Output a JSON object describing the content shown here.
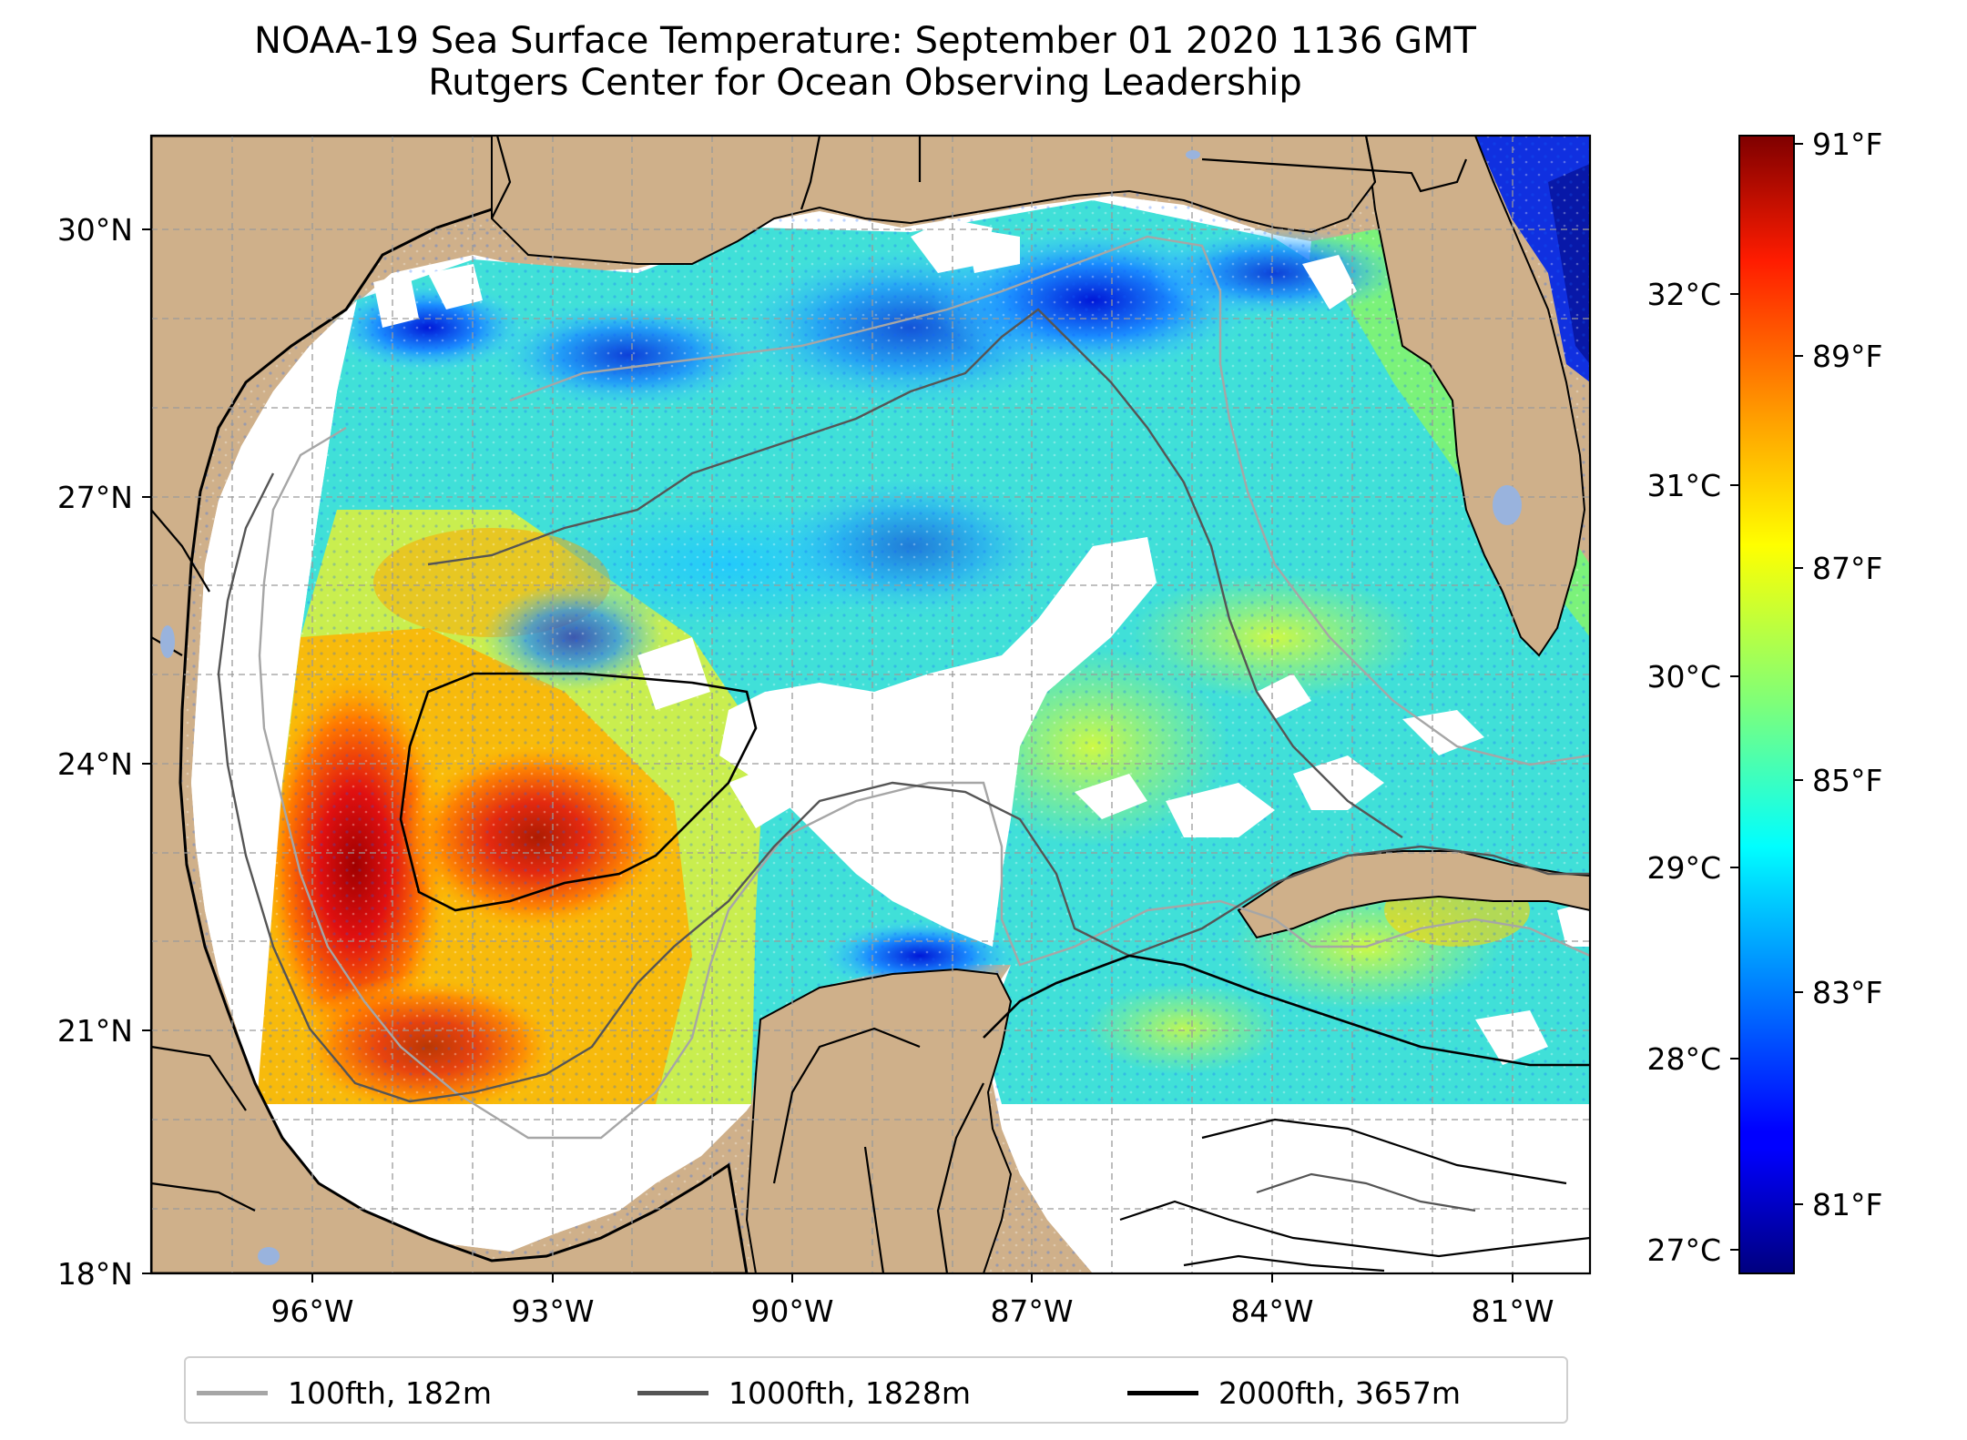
{
  "title": {
    "line1": "NOAA-19 Sea Surface Temperature: September 01 2020 1136 GMT",
    "line2": "Rutgers Center for Ocean Observing Leadership"
  },
  "map": {
    "lat_labels": [
      "30°N",
      "27°N",
      "24°N",
      "21°N",
      "18°N"
    ],
    "lon_labels": [
      "96°W",
      "93°W",
      "90°W",
      "87°W",
      "84°W",
      "81°W"
    ],
    "land_color": "#cfb08a",
    "no_data_color": "#ffffff",
    "grid": true
  },
  "colorbar": {
    "celsius_labels": [
      "32°C",
      "31°C",
      "30°C",
      "29°C",
      "28°C",
      "27°C"
    ],
    "fahrenheit_labels": [
      "91°F",
      "89°F",
      "87°F",
      "85°F",
      "83°F",
      "81°F"
    ],
    "colormap": "jet",
    "range_celsius": [
      26.9,
      32.8
    ]
  },
  "legend": {
    "items": [
      {
        "label": "100fth, 182m",
        "color": "#a6a6a6"
      },
      {
        "label": "1000fth, 1828m",
        "color": "#555555"
      },
      {
        "label": "2000fth, 3657m",
        "color": "#000000"
      }
    ]
  }
}
